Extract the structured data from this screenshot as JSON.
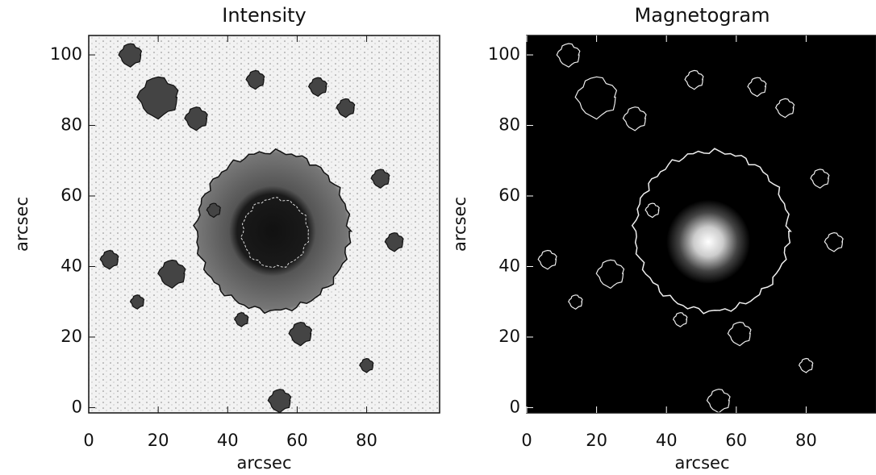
{
  "chart_data": [
    {
      "type": "image",
      "title": "Intensity",
      "xlabel": "arcsec",
      "ylabel": "arcsec",
      "xlim": [
        0,
        101
      ],
      "ylim": [
        -1.5,
        105.5
      ],
      "xticks": [
        0,
        20,
        40,
        60,
        80
      ],
      "yticks": [
        0,
        20,
        40,
        60,
        80,
        100
      ]
    },
    {
      "type": "image",
      "title": "Magnetogram",
      "xlabel": "arcsec",
      "ylabel": "arcsec",
      "xlim": [
        0,
        100
      ],
      "ylim": [
        -1.5,
        105.5
      ],
      "xticks": [
        0,
        20,
        40,
        60,
        80
      ],
      "yticks": [
        0,
        20,
        40,
        60,
        80,
        100
      ]
    }
  ]
}
